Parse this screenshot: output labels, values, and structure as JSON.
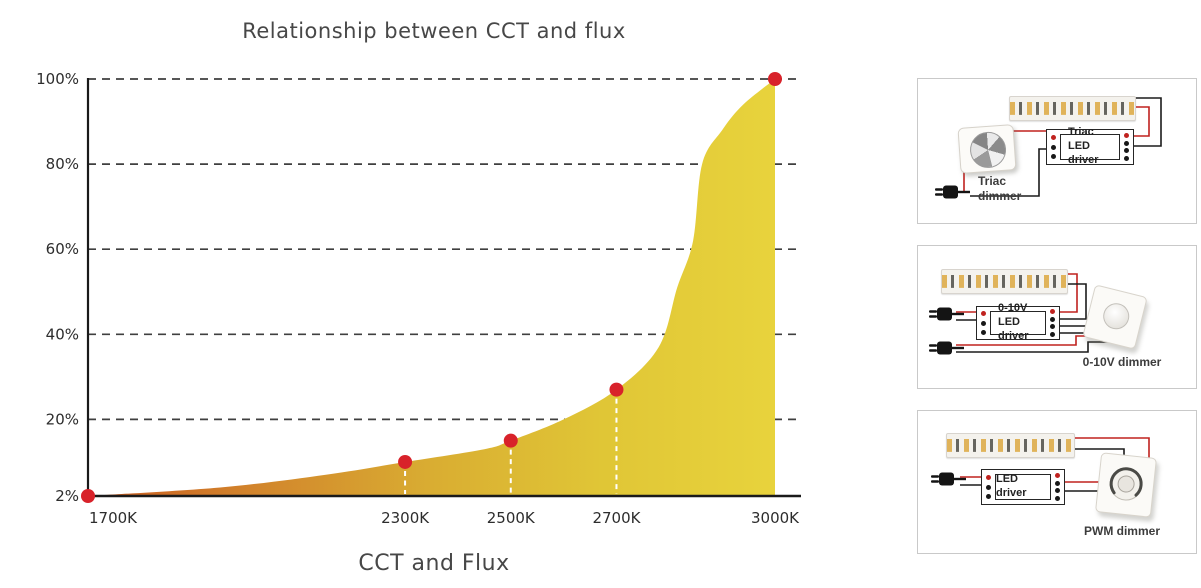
{
  "chart_data": {
    "type": "area",
    "title": "Relationship between CCT and flux",
    "xlabel": "CCT and Flux",
    "ylabel": "",
    "categories": [
      "1700K",
      "2300K",
      "2500K",
      "2700K",
      "3000K"
    ],
    "values": [
      2,
      10,
      15,
      27,
      100
    ],
    "yticks": [
      {
        "v": 2,
        "label": "2%"
      },
      {
        "v": 20,
        "label": "20%"
      },
      {
        "v": 40,
        "label": "40%"
      },
      {
        "v": 60,
        "label": "60%"
      },
      {
        "v": 80,
        "label": "80%"
      },
      {
        "v": 100,
        "label": "100%"
      }
    ],
    "xlim": [
      1700,
      3000
    ],
    "ylim": [
      2,
      100
    ],
    "grid": "dashed horizontal",
    "legend": "none",
    "curve_points": [
      [
        1700,
        2
      ],
      [
        1950,
        4
      ],
      [
        2150,
        7
      ],
      [
        2300,
        10
      ],
      [
        2450,
        13
      ],
      [
        2500,
        15
      ],
      [
        2600,
        20
      ],
      [
        2700,
        27
      ],
      [
        2780,
        37
      ],
      [
        2815,
        51
      ],
      [
        2845,
        62
      ],
      [
        2862,
        80
      ],
      [
        2900,
        88
      ],
      [
        2940,
        94
      ],
      [
        3000,
        100
      ]
    ],
    "marker_color": "#d8222a",
    "dropline_color": "#ffffff",
    "area_gradient": [
      "#ca5a20",
      "#d2862c",
      "#d9ad32",
      "#e0c636",
      "#e8d33c"
    ]
  },
  "colors": {
    "wire_red": "#c0221f",
    "wire_black": "#1b1b1b",
    "panel_border": "#c9c9c9",
    "grid_line": "#3f3f3f",
    "axis": "#1a1a1a"
  },
  "panels": [
    {
      "driver_line1": "Triac",
      "driver_line2": "LED driver",
      "dimmer_line1": "Triac",
      "dimmer_line2": "dimmer"
    },
    {
      "driver_line1": "0-10V",
      "driver_line2": "LED driver",
      "dimmer_caption": "0-10V dimmer"
    },
    {
      "driver_line1": "LED driver",
      "dimmer_caption": "PWM dimmer"
    }
  ]
}
